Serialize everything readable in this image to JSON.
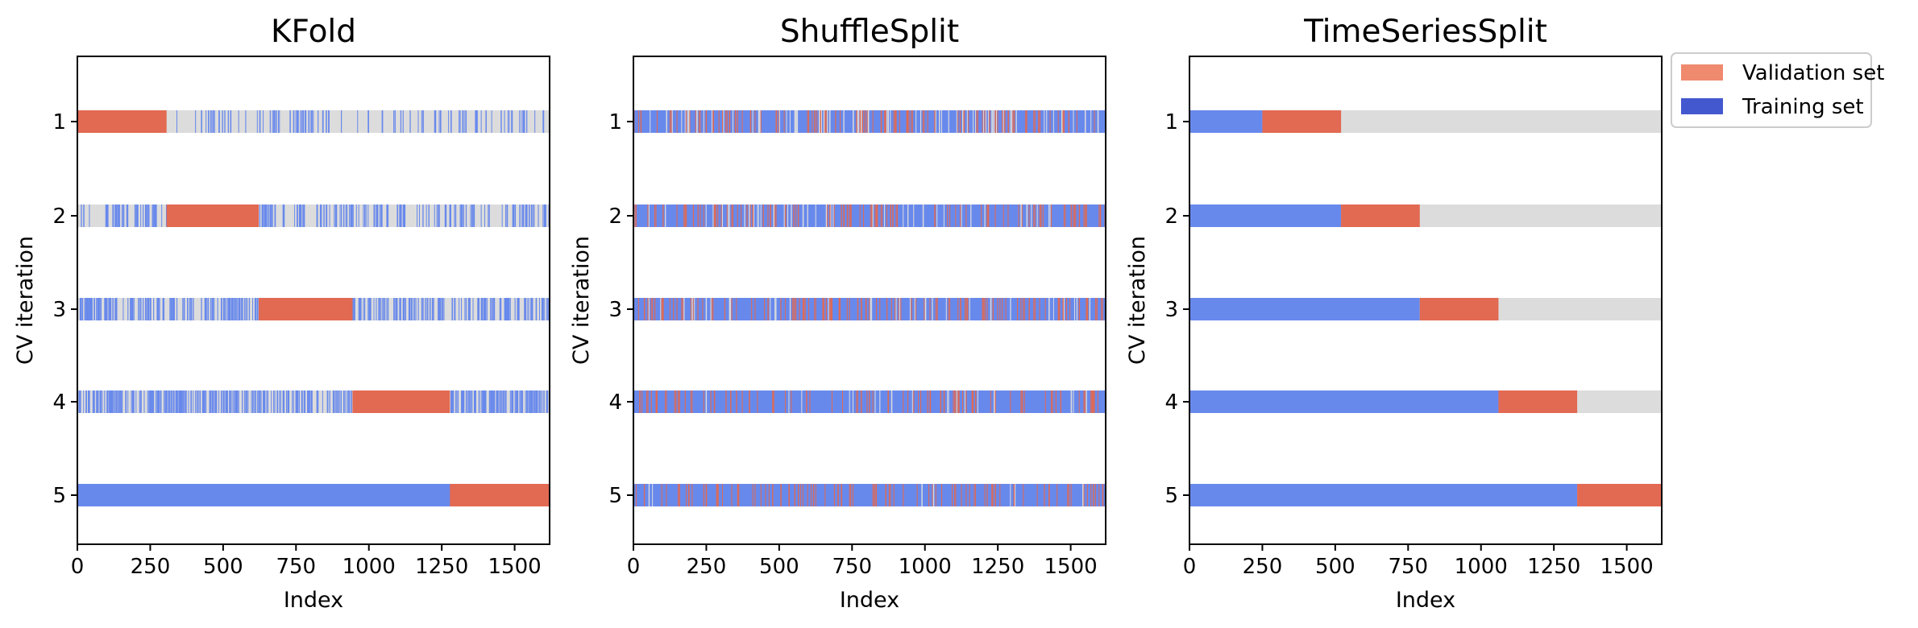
{
  "chart_data": [
    {
      "type": "bar",
      "title": "KFold",
      "xlabel": "Index",
      "ylabel": "CV iteration",
      "xlim": [
        0,
        1620
      ],
      "x_ticks": [
        0,
        250,
        500,
        750,
        1000,
        1250,
        1500
      ],
      "iterations": [
        "1",
        "2",
        "3",
        "4",
        "5"
      ],
      "pattern": "kfold",
      "validation_ranges": [
        [
          0,
          306
        ],
        [
          306,
          622
        ],
        [
          622,
          944
        ],
        [
          944,
          1278
        ],
        [
          1278,
          1620
        ]
      ]
    },
    {
      "type": "bar",
      "title": "ShuffleSplit",
      "xlabel": "Index",
      "ylabel": "CV iteration",
      "xlim": [
        0,
        1620
      ],
      "x_ticks": [
        0,
        250,
        500,
        750,
        1000,
        1250,
        1500
      ],
      "iterations": [
        "1",
        "2",
        "3",
        "4",
        "5"
      ],
      "pattern": "shuffle",
      "validation_ranges": []
    },
    {
      "type": "bar",
      "title": "TimeSeriesSplit",
      "xlabel": "Index",
      "ylabel": "CV iteration",
      "xlim": [
        0,
        1620
      ],
      "x_ticks": [
        0,
        250,
        500,
        750,
        1000,
        1250,
        1500
      ],
      "iterations": [
        "1",
        "2",
        "3",
        "4",
        "5"
      ],
      "pattern": "timeseries",
      "training_ranges": [
        [
          0,
          250
        ],
        [
          0,
          520
        ],
        [
          0,
          790
        ],
        [
          0,
          1060
        ],
        [
          0,
          1330
        ]
      ],
      "validation_ranges": [
        [
          250,
          520
        ],
        [
          520,
          790
        ],
        [
          790,
          1060
        ],
        [
          1060,
          1330
        ],
        [
          1330,
          1620
        ]
      ]
    }
  ],
  "legend": {
    "items": [
      {
        "label": "Validation set",
        "color": "#ef8a6f"
      },
      {
        "label": "Training set",
        "color": "#4358cf"
      }
    ]
  },
  "colors": {
    "training": "#6889ec",
    "validation": "#e26952",
    "unused": "#dcdcdc"
  }
}
